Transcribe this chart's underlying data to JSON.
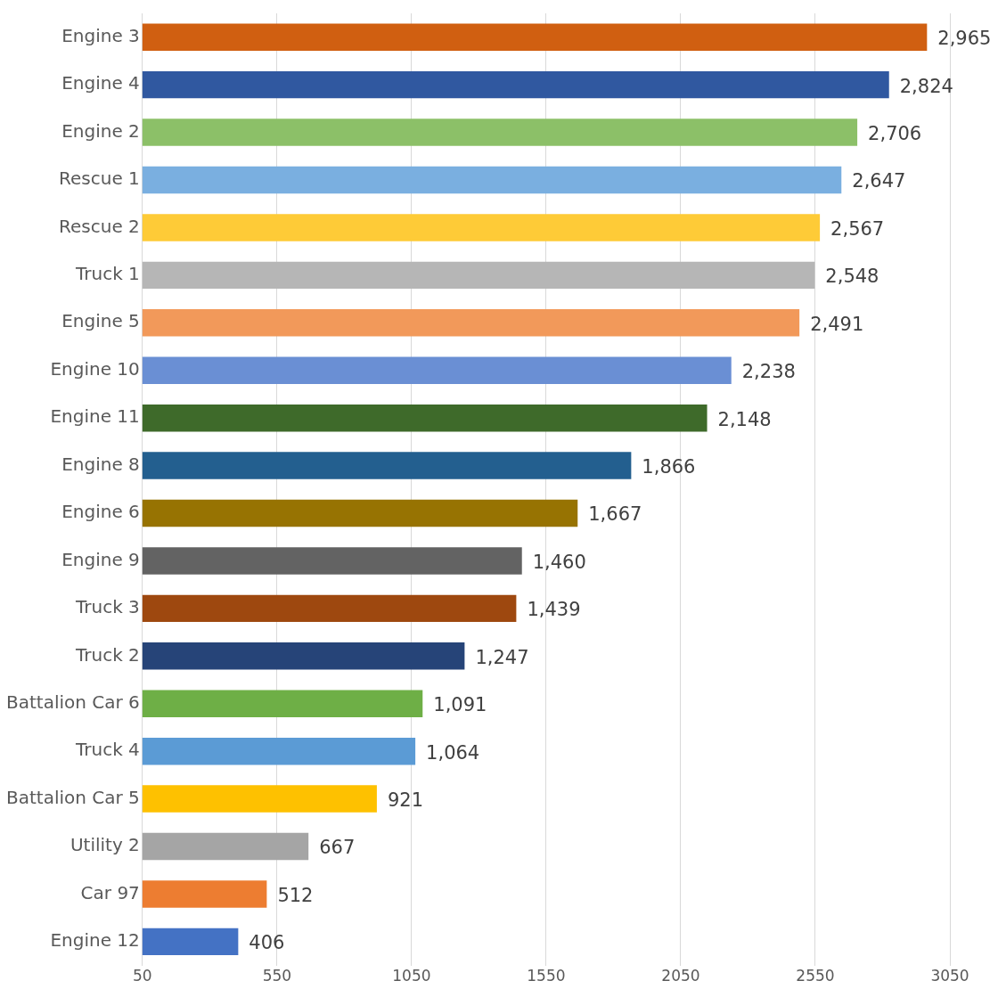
{
  "chart_data": {
    "type": "bar",
    "orientation": "horizontal",
    "grid": "x",
    "legend": false,
    "value_labels": [
      "2,965",
      "2,824",
      "2,706",
      "2,647",
      "2,567",
      "2,548",
      "2,491",
      "2,238",
      "2,148",
      "1,866",
      "1,667",
      "1,460",
      "1,439",
      "1,247",
      "1,091",
      "1,064",
      "921",
      "667",
      "512",
      "406"
    ],
    "categories": [
      "Engine 3",
      "Engine 4",
      "Engine 2",
      "Rescue 1",
      "Rescue 2",
      "Truck 1",
      "Engine 5",
      "Engine 10",
      "Engine 11",
      "Engine 8",
      "Engine 6",
      "Engine 9",
      "Truck 3",
      "Truck 2",
      "Battalion Car 6",
      "Truck 4",
      "Battalion Car 5",
      "Utility 2",
      "Car 97",
      "Engine 12"
    ],
    "values": [
      2965,
      2824,
      2706,
      2647,
      2567,
      2548,
      2491,
      2238,
      2148,
      1866,
      1667,
      1460,
      1439,
      1247,
      1091,
      1064,
      921,
      667,
      512,
      406
    ],
    "colors": [
      "#d05f11",
      "#3058a0",
      "#8cc068",
      "#7aafe0",
      "#fecb37",
      "#b6b6b6",
      "#f2995a",
      "#6a8fd4",
      "#3e6a2a",
      "#235f8f",
      "#977302",
      "#636363",
      "#9e480f",
      "#264478",
      "#6eaf46",
      "#5b9bd5",
      "#fec100",
      "#a5a5a5",
      "#ed7d31",
      "#4472c4"
    ],
    "xlim": [
      50,
      3050
    ],
    "xticks": [
      50,
      550,
      1050,
      1550,
      2050,
      2550,
      3050
    ]
  }
}
